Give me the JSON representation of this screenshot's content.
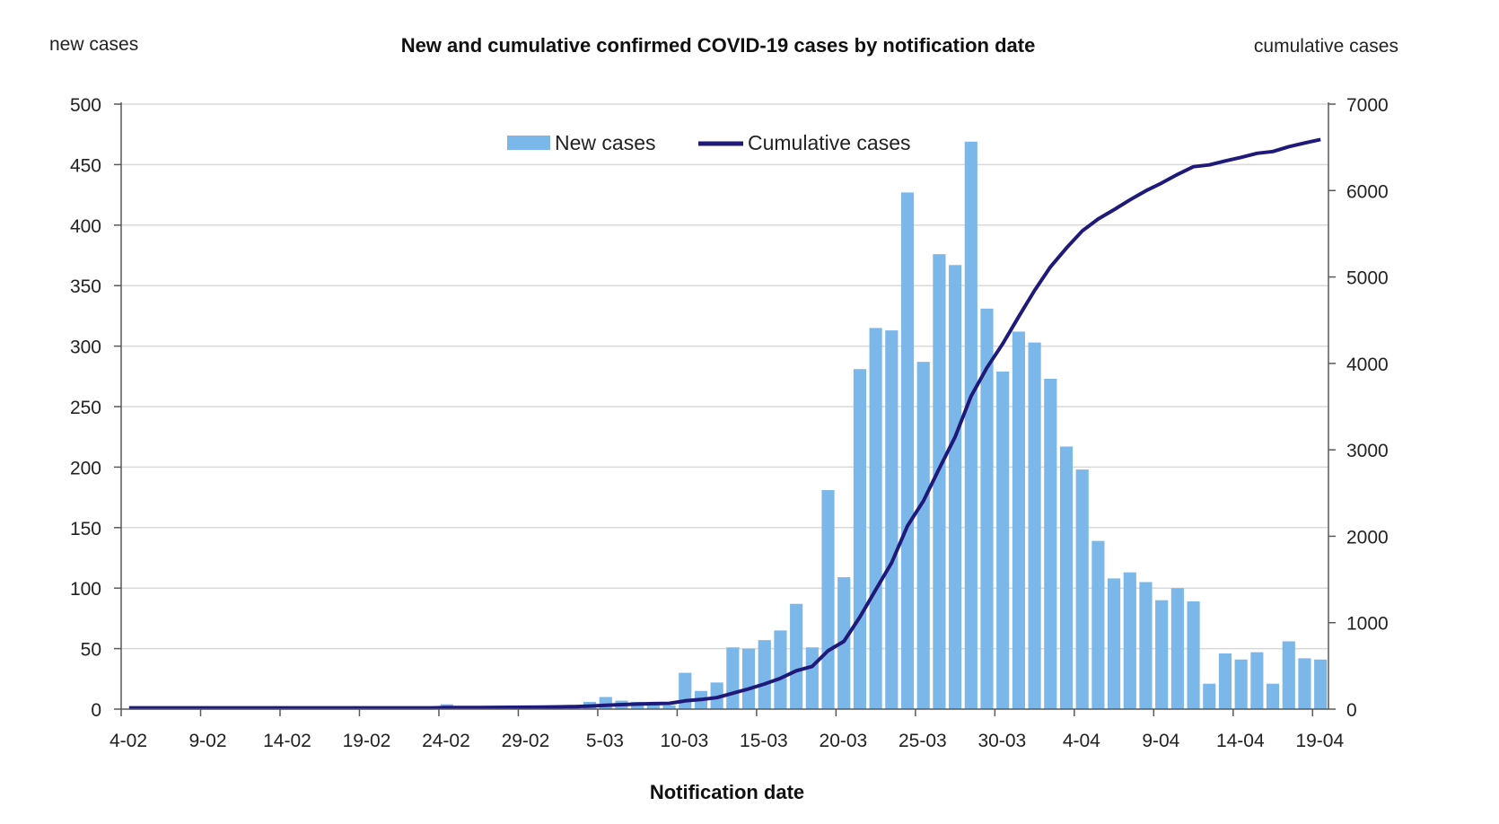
{
  "chart_data": {
    "type": "bar",
    "title": "New and cumulative confirmed COVID-19 cases by notification date",
    "xlabel": "Notification date",
    "ylabel_left": "new cases",
    "ylabel_right": "cumulative cases",
    "ylim_left": [
      0,
      500
    ],
    "ylim_right": [
      0,
      7000
    ],
    "yticks_left": [
      "0",
      "50",
      "100",
      "150",
      "200",
      "250",
      "300",
      "350",
      "400",
      "450",
      "500"
    ],
    "yticks_right": [
      "0",
      "1000",
      "2000",
      "3000",
      "4000",
      "5000",
      "6000",
      "7000"
    ],
    "x_tick_labels": [
      "4-02",
      "9-02",
      "14-02",
      "19-02",
      "24-02",
      "29-02",
      "5-03",
      "10-03",
      "15-03",
      "20-03",
      "25-03",
      "30-03",
      "4-04",
      "9-04",
      "14-04",
      "19-04"
    ],
    "x_tick_every": 5,
    "grid": true,
    "legend_position": "top-center",
    "categories": [
      "4-02",
      "5-02",
      "6-02",
      "7-02",
      "8-02",
      "9-02",
      "10-02",
      "11-02",
      "12-02",
      "13-02",
      "14-02",
      "15-02",
      "16-02",
      "17-02",
      "18-02",
      "19-02",
      "20-02",
      "21-02",
      "22-02",
      "23-02",
      "24-02",
      "25-02",
      "26-02",
      "27-02",
      "28-02",
      "29-02",
      "1-03",
      "2-03",
      "3-03",
      "4-03",
      "5-03",
      "6-03",
      "7-03",
      "8-03",
      "9-03",
      "10-03",
      "11-03",
      "12-03",
      "13-03",
      "14-03",
      "15-03",
      "16-03",
      "17-03",
      "18-03",
      "19-03",
      "20-03",
      "21-03",
      "22-03",
      "23-03",
      "24-03",
      "25-03",
      "26-03",
      "27-03",
      "28-03",
      "29-03",
      "30-03",
      "31-03",
      "1-04",
      "2-04",
      "3-04",
      "4-04",
      "5-04",
      "6-04",
      "7-04",
      "8-04",
      "9-04",
      "10-04",
      "11-04",
      "12-04",
      "13-04",
      "14-04",
      "15-04",
      "16-04",
      "17-04",
      "18-04",
      "19-04"
    ],
    "series": [
      {
        "name": "New cases",
        "kind": "bar",
        "axis": "left",
        "color": "#7cb7ea",
        "values": [
          0,
          0,
          0,
          0,
          0,
          0,
          0,
          0,
          0,
          0,
          0,
          0,
          0,
          0,
          0,
          0,
          0,
          0,
          0,
          0,
          4,
          0,
          0,
          1,
          1,
          1,
          2,
          2,
          3,
          6,
          10,
          7,
          6,
          5,
          3,
          30,
          15,
          22,
          51,
          50,
          57,
          65,
          87,
          51,
          181,
          109,
          281,
          315,
          313,
          427,
          287,
          376,
          367,
          469,
          331,
          279,
          312,
          303,
          273,
          217,
          198,
          139,
          108,
          113,
          105,
          90,
          100,
          89,
          21,
          46,
          41,
          47,
          21,
          56,
          42,
          41
        ]
      },
      {
        "name": "Cumulative cases",
        "kind": "line",
        "axis": "right",
        "color": "#1f1a7a",
        "values": [
          15,
          15,
          15,
          15,
          15,
          15,
          15,
          15,
          15,
          15,
          15,
          15,
          15,
          15,
          15,
          15,
          15,
          15,
          15,
          15,
          19,
          19,
          19,
          20,
          21,
          22,
          24,
          26,
          29,
          35,
          45,
          52,
          58,
          63,
          66,
          96,
          111,
          133,
          184,
          234,
          291,
          356,
          443,
          494,
          675,
          784,
          1065,
          1380,
          1693,
          2120,
          2407,
          2783,
          3150,
          3619,
          3950,
          4229,
          4541,
          4844,
          5117,
          5334,
          5532,
          5671,
          5779,
          5892,
          5997,
          6087,
          6187,
          6276,
          6297,
          6343,
          6384,
          6431,
          6452,
          6508,
          6550,
          6591
        ]
      }
    ]
  }
}
